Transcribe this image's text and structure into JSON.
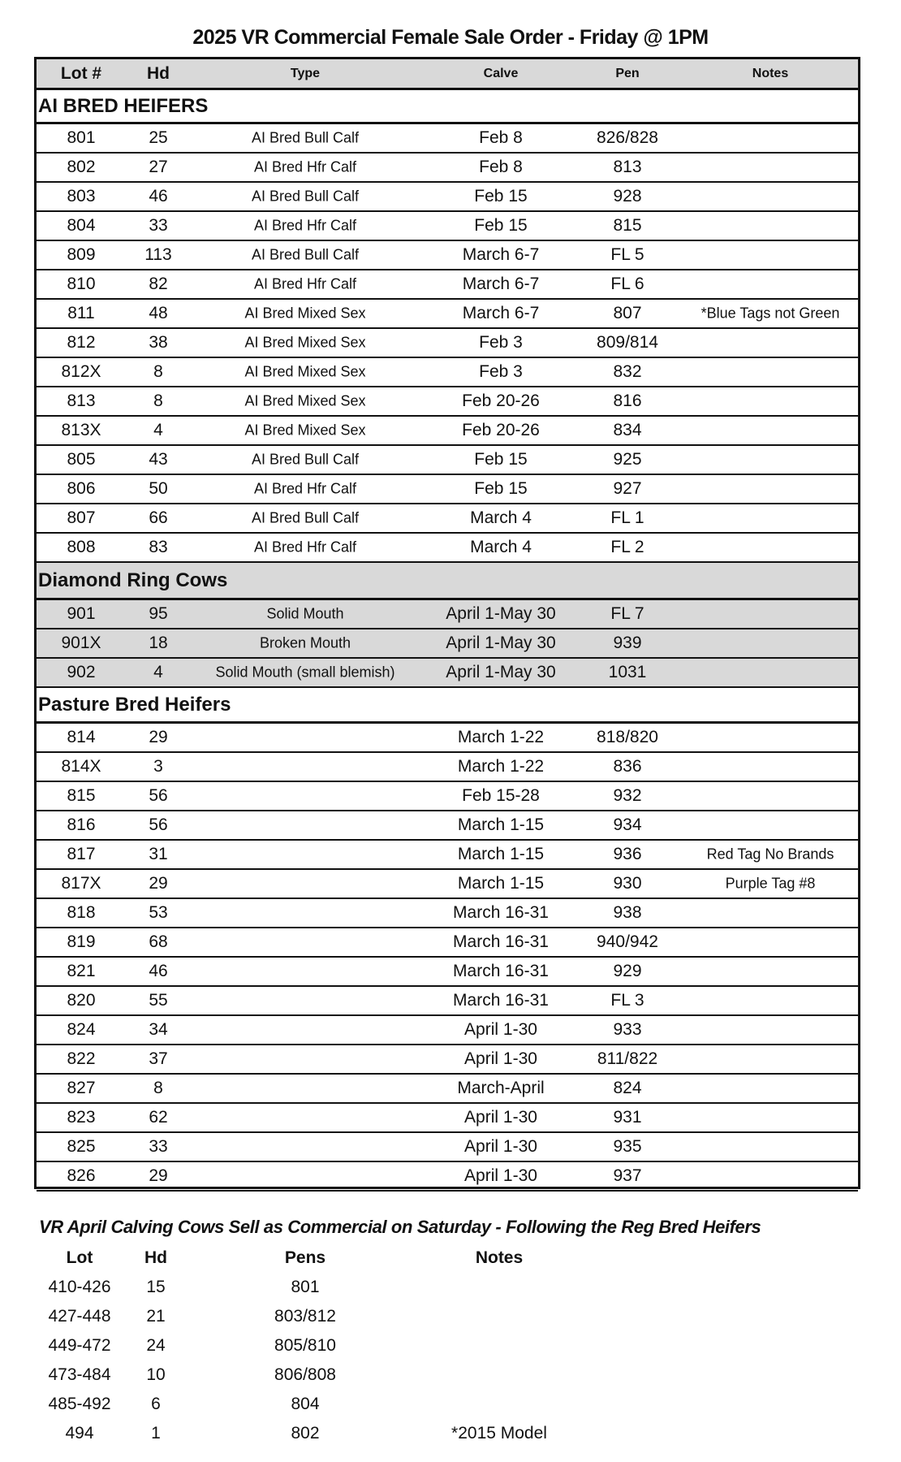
{
  "title": "2025 VR Commercial Female Sale Order  - Friday @ 1PM",
  "columns": {
    "lot": "Lot #",
    "hd": "Hd",
    "type": "Type",
    "calve": "Calve",
    "pen": "Pen",
    "notes": "Notes"
  },
  "sections": [
    {
      "heading": "AI BRED HEIFERS",
      "shaded": false,
      "rows": [
        [
          "801",
          "25",
          "AI Bred Bull Calf",
          "Feb 8",
          "826/828",
          ""
        ],
        [
          "802",
          "27",
          "AI Bred Hfr Calf",
          "Feb 8",
          "813",
          ""
        ],
        [
          "803",
          "46",
          "AI Bred Bull Calf",
          "Feb 15",
          "928",
          ""
        ],
        [
          "804",
          "33",
          "AI Bred Hfr Calf",
          "Feb 15",
          "815",
          ""
        ],
        [
          "809",
          "113",
          "AI Bred Bull Calf",
          "March 6-7",
          "FL 5",
          ""
        ],
        [
          "810",
          "82",
          "AI Bred Hfr Calf",
          "March 6-7",
          "FL 6",
          ""
        ],
        [
          "811",
          "48",
          "AI Bred Mixed Sex",
          "March 6-7",
          "807",
          "*Blue Tags not Green"
        ],
        [
          "812",
          "38",
          "AI Bred Mixed Sex",
          "Feb 3",
          "809/814",
          ""
        ],
        [
          "812X",
          "8",
          "AI Bred Mixed Sex",
          "Feb 3",
          "832",
          ""
        ],
        [
          "813",
          "8",
          "AI Bred Mixed Sex",
          "Feb 20-26",
          "816",
          ""
        ],
        [
          "813X",
          "4",
          "AI Bred Mixed Sex",
          "Feb 20-26",
          "834",
          ""
        ],
        [
          "805",
          "43",
          "AI Bred Bull Calf",
          "Feb 15",
          "925",
          ""
        ],
        [
          "806",
          "50",
          "AI Bred Hfr Calf",
          "Feb 15",
          "927",
          ""
        ],
        [
          "807",
          "66",
          "AI Bred Bull Calf",
          "March 4",
          "FL 1",
          ""
        ],
        [
          "808",
          "83",
          "AI Bred Hfr Calf",
          "March 4",
          "FL 2",
          ""
        ]
      ]
    },
    {
      "heading": "Diamond Ring Cows",
      "shaded": true,
      "rows": [
        [
          "901",
          "95",
          "Solid Mouth",
          "April 1-May 30",
          "FL 7",
          ""
        ],
        [
          "901X",
          "18",
          "Broken Mouth",
          "April 1-May 30",
          "939",
          ""
        ],
        [
          "902",
          "4",
          "Solid Mouth (small blemish)",
          "April 1-May 30",
          "1031",
          ""
        ]
      ]
    },
    {
      "heading": "Pasture Bred Heifers",
      "shaded": false,
      "rows": [
        [
          "814",
          "29",
          "",
          "March 1-22",
          "818/820",
          ""
        ],
        [
          "814X",
          "3",
          "",
          "March 1-22",
          "836",
          ""
        ],
        [
          "815",
          "56",
          "",
          "Feb 15-28",
          "932",
          ""
        ],
        [
          "816",
          "56",
          "",
          "March 1-15",
          "934",
          ""
        ],
        [
          "817",
          "31",
          "",
          "March 1-15",
          "936",
          "Red Tag No Brands"
        ],
        [
          "817X",
          "29",
          "",
          "March 1-15",
          "930",
          "Purple Tag #8"
        ],
        [
          "818",
          "53",
          "",
          "March 16-31",
          "938",
          ""
        ],
        [
          "819",
          "68",
          "",
          "March 16-31",
          "940/942",
          ""
        ],
        [
          "821",
          "46",
          "",
          "March 16-31",
          "929",
          ""
        ],
        [
          "820",
          "55",
          "",
          "March 16-31",
          "FL 3",
          ""
        ],
        [
          "824",
          "34",
          "",
          "April 1-30",
          "933",
          ""
        ],
        [
          "822",
          "37",
          "",
          "April 1-30",
          "811/822",
          ""
        ],
        [
          "827",
          "8",
          "",
          "March-April",
          "824",
          ""
        ],
        [
          "823",
          "62",
          "",
          "April 1-30",
          "931",
          ""
        ],
        [
          "825",
          "33",
          "",
          "April 1-30",
          "935",
          ""
        ],
        [
          "826",
          "29",
          "",
          "April 1-30",
          "937",
          ""
        ]
      ]
    }
  ],
  "footer": {
    "title": "VR April Calving Cows Sell as Commercial on Saturday - Following the Reg Bred Heifers",
    "columns": {
      "lot": "Lot",
      "hd": "Hd",
      "pens": "Pens",
      "notes": "Notes"
    },
    "rows": [
      [
        "410-426",
        "15",
        "801",
        ""
      ],
      [
        "427-448",
        "21",
        "803/812",
        ""
      ],
      [
        "449-472",
        "24",
        "805/810",
        ""
      ],
      [
        "473-484",
        "10",
        "806/808",
        ""
      ],
      [
        "485-492",
        "6",
        "804",
        ""
      ],
      [
        "494",
        "1",
        "802",
        "*2015 Model"
      ]
    ]
  },
  "colors": {
    "header_bg": "#d9d9d9",
    "shaded_bg": "#d9d9d9",
    "border": "#111111"
  }
}
